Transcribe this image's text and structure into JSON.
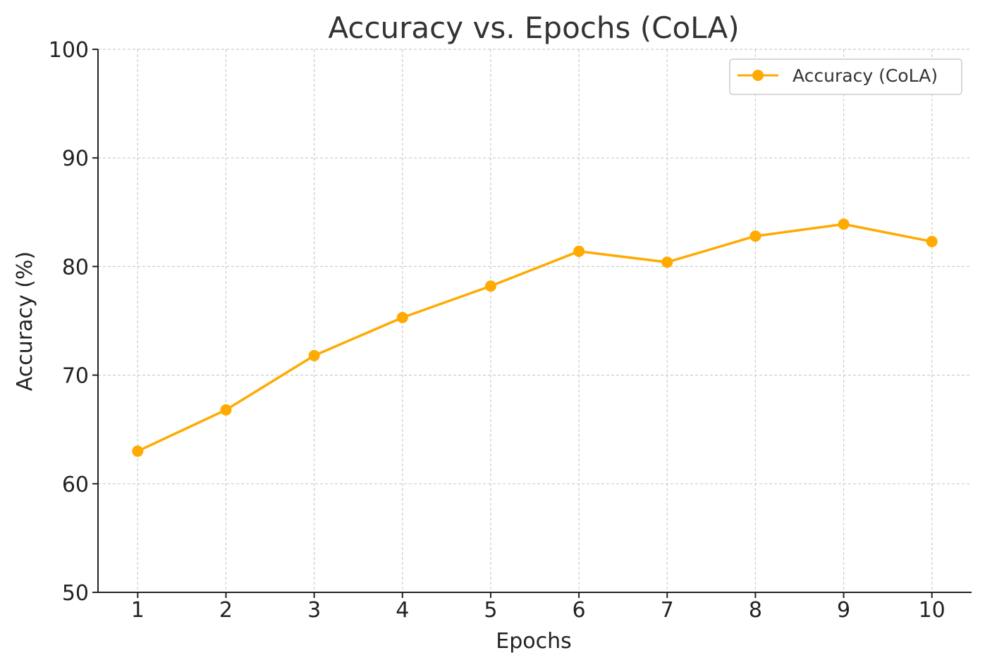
{
  "chart_data": {
    "type": "line",
    "title": "Accuracy vs. Epochs (CoLA)",
    "xlabel": "Epochs",
    "ylabel": "Accuracy (%)",
    "x": [
      1,
      2,
      3,
      4,
      5,
      6,
      7,
      8,
      9,
      10
    ],
    "x_tick_labels": [
      "1",
      "2",
      "3",
      "4",
      "5",
      "6",
      "7",
      "8",
      "9",
      "10"
    ],
    "y_tick_labels": [
      "50",
      "60",
      "70",
      "80",
      "90",
      "100"
    ],
    "y_ticks": [
      50,
      60,
      70,
      80,
      90,
      100
    ],
    "ylim": [
      50,
      100
    ],
    "xlim": [
      0.55,
      10.45
    ],
    "grid": true,
    "legend_position": "top-right",
    "series": [
      {
        "name": "Accuracy (CoLA)",
        "color": "#FFAA00",
        "marker": "circle",
        "values": [
          63.0,
          66.8,
          71.8,
          75.3,
          78.2,
          81.4,
          80.4,
          82.8,
          83.9,
          82.3
        ]
      }
    ]
  }
}
